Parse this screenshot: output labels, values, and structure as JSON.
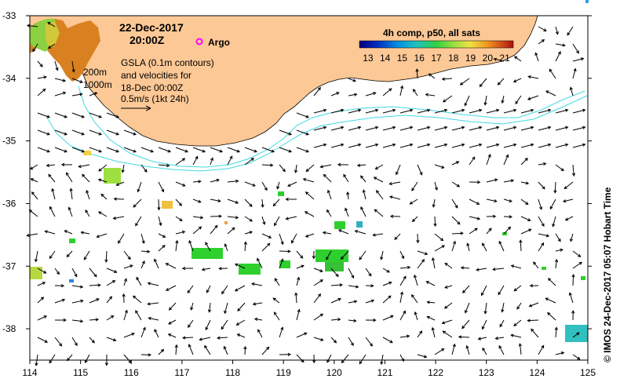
{
  "header": {
    "date": "22-Dec-2017",
    "time": "20:00Z",
    "argo_label": "Argo"
  },
  "annotations": {
    "contour_200": "200m",
    "contour_1000": "1000m",
    "gsla_line1": "GSLA (0.1m contours)",
    "gsla_line2": "and velocities for",
    "gsla_line3": "18-Dec 00:00Z",
    "scale_label": "0.5m/s (1kt 24h)"
  },
  "colorbar": {
    "title": "4h comp, p50, all sats",
    "ticks": [
      "13",
      "14",
      "15",
      "16",
      "17",
      "18",
      "19",
      "20",
      "21"
    ],
    "range": [
      13,
      22
    ]
  },
  "axes": {
    "x_ticks": [
      "114",
      "115",
      "116",
      "117",
      "118",
      "119",
      "120",
      "121",
      "122",
      "123",
      "124",
      "125"
    ],
    "y_ticks": [
      "-33",
      "-34",
      "-35",
      "-36",
      "-37",
      "-38"
    ],
    "x_range": [
      114,
      125
    ],
    "y_range": [
      -38.5,
      -33
    ]
  },
  "credit": "© IMOS 24-Dec-2017 05:07 Hobart Time",
  "colors": {
    "land": "#fcc896",
    "coast": "#000000",
    "isobath": "#40d8e0",
    "argo": "#ff00ff",
    "sst_green": "#2ed02e",
    "sst_cyan": "#30c0c0"
  }
}
